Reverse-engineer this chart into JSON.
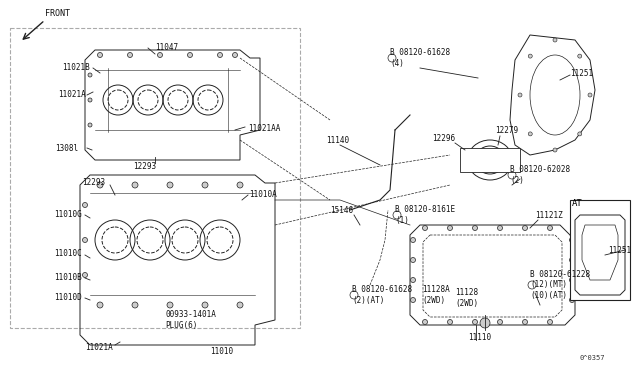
{
  "bg_color": "#ffffff",
  "fig_width": 6.4,
  "fig_height": 3.72,
  "dpi": 100,
  "title": "",
  "diagram_id": "0^0357",
  "labels": {
    "front_arrow": "FRONT",
    "11047": "11047",
    "11021B": "11021B",
    "11021A_top": "11021A",
    "11021AA": "11021AA",
    "13081": "1308l",
    "12293_top": "12293",
    "12293_bot": "12293",
    "11010G": "11010G",
    "11010A": "11010A",
    "11010C": "11010C",
    "11010B": "11010B",
    "11010D": "11010D",
    "11021A_bot": "11021A",
    "plug": "00933-1401A\nPLUG(6)",
    "11010": "11010",
    "bolt1": "B 08120-61628\n(4)",
    "11140": "11140",
    "12296": "12296",
    "12279": "12279",
    "bolt2": "B 08120-62028\n(2)",
    "15146": "15146",
    "bolt3": "B 08120-8161E\n(1)",
    "11121Z": "11121Z",
    "bolt4_at": "B 08120-61628\n(2)(AT)",
    "11128A": "11128A\n(2WD)",
    "11128": "11128\n(2WD)",
    "11110": "11110",
    "bolt5": "B 08120-61228\n(12)(MT)\n(10)(AT)",
    "11251_top": "11251",
    "11251_bot": "11251",
    "at_label": "AT"
  }
}
